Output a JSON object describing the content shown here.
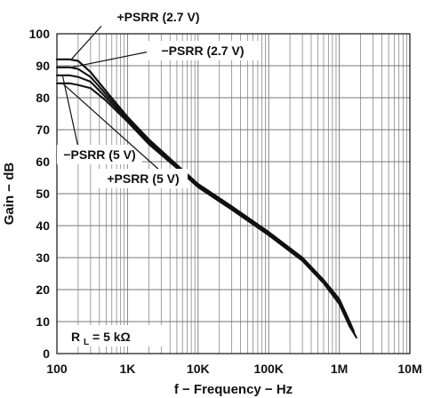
{
  "chart_data": {
    "type": "line",
    "xlabel": "f − Frequency − Hz",
    "ylabel": "Gain − dB",
    "x_scale": "log",
    "xlim": [
      100,
      10000000
    ],
    "ylim": [
      0,
      100
    ],
    "x_ticks": [
      {
        "value": 100,
        "label": "100"
      },
      {
        "value": 1000,
        "label": "1K"
      },
      {
        "value": 10000,
        "label": "10K"
      },
      {
        "value": 100000,
        "label": "100K"
      },
      {
        "value": 1000000,
        "label": "1M"
      },
      {
        "value": 10000000,
        "label": "10M"
      }
    ],
    "y_ticks": [
      0,
      10,
      20,
      30,
      40,
      50,
      60,
      70,
      80,
      90,
      100
    ],
    "grid": true,
    "series": [
      {
        "name": "+PSRR (2.7 V)",
        "points": [
          [
            100,
            92
          ],
          [
            150,
            92
          ],
          [
            200,
            91.5
          ],
          [
            300,
            88
          ],
          [
            500,
            82
          ],
          [
            1000,
            74
          ],
          [
            2000,
            67
          ],
          [
            5000,
            59
          ],
          [
            10000,
            53
          ],
          [
            30000,
            46
          ],
          [
            100000,
            38
          ],
          [
            300000,
            30
          ],
          [
            600000,
            23
          ],
          [
            1000000,
            17
          ],
          [
            1400000,
            10
          ],
          [
            1600000,
            7
          ]
        ]
      },
      {
        "name": "−PSRR (2.7 V)",
        "points": [
          [
            100,
            89.5
          ],
          [
            150,
            89.5
          ],
          [
            200,
            89
          ],
          [
            300,
            86.5
          ],
          [
            500,
            81
          ],
          [
            1000,
            73.5
          ],
          [
            2000,
            66.5
          ],
          [
            5000,
            58.8
          ],
          [
            10000,
            52.8
          ],
          [
            30000,
            45.8
          ],
          [
            100000,
            37.8
          ],
          [
            300000,
            29.8
          ],
          [
            600000,
            22.8
          ],
          [
            1000000,
            16.5
          ],
          [
            1400000,
            9.5
          ],
          [
            1650000,
            6
          ]
        ]
      },
      {
        "name": "−PSRR (5 V)",
        "points": [
          [
            100,
            87
          ],
          [
            150,
            87
          ],
          [
            200,
            86.5
          ],
          [
            300,
            85
          ],
          [
            500,
            80
          ],
          [
            1000,
            73
          ],
          [
            2000,
            66
          ],
          [
            5000,
            58.5
          ],
          [
            10000,
            52.5
          ],
          [
            30000,
            45.5
          ],
          [
            100000,
            37.5
          ],
          [
            300000,
            29.5
          ],
          [
            600000,
            22.5
          ],
          [
            1000000,
            16
          ],
          [
            1400000,
            9
          ],
          [
            1700000,
            5.5
          ]
        ]
      },
      {
        "name": "+PSRR (5 V)",
        "points": [
          [
            100,
            84.5
          ],
          [
            150,
            84.5
          ],
          [
            200,
            84
          ],
          [
            300,
            83
          ],
          [
            500,
            79
          ],
          [
            1000,
            72.5
          ],
          [
            2000,
            65.5
          ],
          [
            5000,
            58
          ],
          [
            10000,
            52
          ],
          [
            30000,
            45
          ],
          [
            100000,
            37
          ],
          [
            300000,
            29
          ],
          [
            600000,
            22
          ],
          [
            1000000,
            15.5
          ],
          [
            1400000,
            8.5
          ],
          [
            1750000,
            5
          ]
        ]
      }
    ],
    "annotations": [
      {
        "name": "+PSRR (2.7 V)",
        "label": "+PSRR (2.7 V)",
        "target": [
          160,
          92
        ]
      },
      {
        "name": "−PSRR (2.7 V)",
        "label": "−PSRR (2.7 V)",
        "target": [
          160,
          89.5
        ]
      },
      {
        "name": "−PSRR (5 V)",
        "label": "−PSRR (5 V)",
        "target": [
          120,
          87
        ]
      },
      {
        "name": "+PSRR (5 V)",
        "label": "+PSRR (5 V)",
        "target": [
          120,
          84.5
        ]
      }
    ],
    "condition_label": {
      "prefix": "R",
      "subscript": "L",
      "suffix": " = 5 kΩ"
    },
    "colors": {
      "line": "#111111",
      "grid": "#777777",
      "background": "#ffffff"
    }
  }
}
